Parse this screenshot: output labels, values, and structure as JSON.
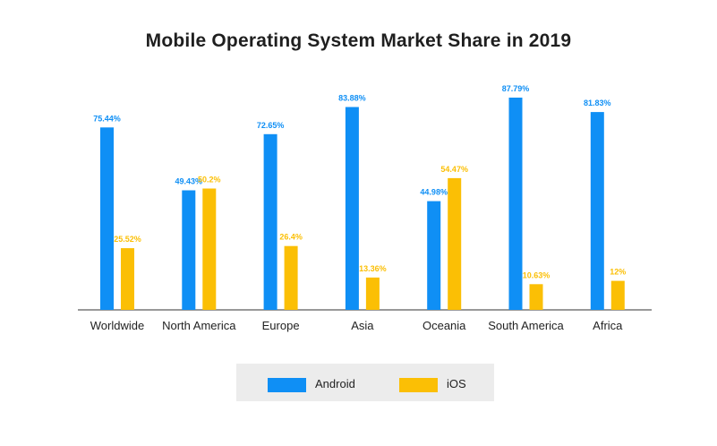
{
  "chart_data": {
    "type": "bar",
    "title": "Mobile Operating System Market Share in 2019",
    "categories": [
      "Worldwide",
      "North America",
      "Europe",
      "Asia",
      "Oceania",
      "South America",
      "Africa"
    ],
    "series": [
      {
        "name": "Android",
        "color": "#0f8ff5",
        "values": [
          75.44,
          49.43,
          72.65,
          83.88,
          44.98,
          87.79,
          81.83
        ],
        "labels": [
          "75.44%",
          "49.43%",
          "72.65%",
          "83.88%",
          "44.98%",
          "87.79%",
          "81.83%"
        ]
      },
      {
        "name": "iOS",
        "color": "#fbbf05",
        "values": [
          25.52,
          50.2,
          26.4,
          13.36,
          54.47,
          10.63,
          12
        ],
        "labels": [
          "25.52%",
          "50.2%",
          "26.4%",
          "13.36%",
          "54.47%",
          "10.63%",
          "12%"
        ]
      }
    ],
    "xlabel": "",
    "ylabel": "",
    "ylim": [
      0,
      100
    ],
    "grid": false,
    "legend_position": "bottom"
  }
}
